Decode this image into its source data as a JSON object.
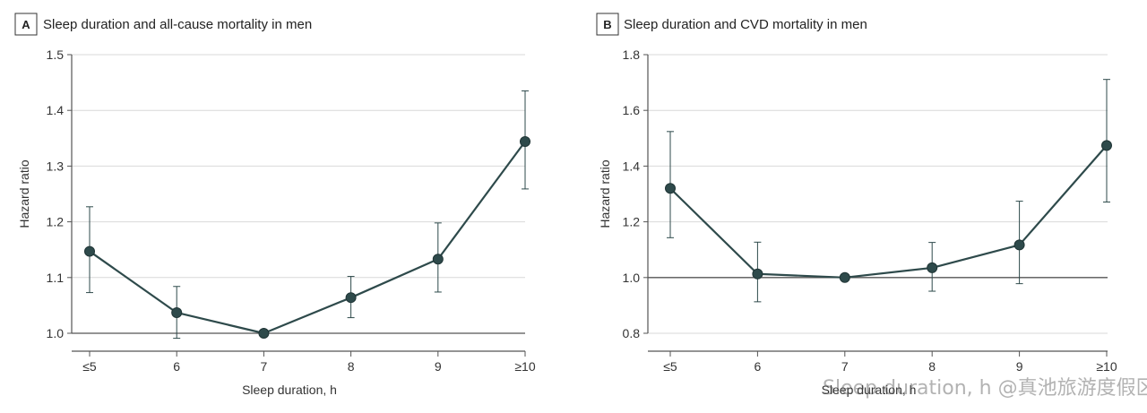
{
  "colors": {
    "line": "#2e4a4b",
    "marker": "#2e4a4b",
    "grid": "#d9d9d9",
    "axis": "#555555",
    "reference_line": "#555555"
  },
  "watermark": "Sleep duration, h @真池旅游度假区",
  "chart_data": [
    {
      "type": "line",
      "panel": "A",
      "title": "Sleep duration and all-cause mortality in men",
      "xlabel": "Sleep duration, h",
      "ylabel": "Hazard ratio",
      "categories": [
        "≤5",
        "6",
        "7",
        "8",
        "9",
        "≥10"
      ],
      "values": [
        1.147,
        1.037,
        1.0,
        1.064,
        1.133,
        1.344
      ],
      "ci_lower": [
        1.073,
        0.991,
        1.0,
        1.028,
        1.074,
        1.259
      ],
      "ci_upper": [
        1.227,
        1.084,
        1.0,
        1.102,
        1.198,
        1.435
      ],
      "ylim": [
        1.0,
        1.5
      ],
      "yticks": [
        1.0,
        1.1,
        1.2,
        1.3,
        1.4,
        1.5
      ],
      "ytick_labels": [
        "1.0",
        "1.1",
        "1.2",
        "1.3",
        "1.4",
        "1.5"
      ],
      "reference": 1.0,
      "grid": true
    },
    {
      "type": "line",
      "panel": "B",
      "title": "Sleep duration and CVD mortality in men",
      "xlabel": "Sleep duration, h",
      "ylabel": "Hazard ratio",
      "categories": [
        "≤5",
        "6",
        "7",
        "8",
        "9",
        "≥10"
      ],
      "values": [
        1.32,
        1.013,
        1.0,
        1.035,
        1.117,
        1.474
      ],
      "ci_lower": [
        1.143,
        0.913,
        1.0,
        0.951,
        0.978,
        1.271
      ],
      "ci_upper": [
        1.524,
        1.127,
        1.0,
        1.126,
        1.274,
        1.711
      ],
      "ylim": [
        0.8,
        1.8
      ],
      "yticks": [
        0.8,
        1.0,
        1.2,
        1.4,
        1.6,
        1.8
      ],
      "ytick_labels": [
        "0.8",
        "1.0",
        "1.2",
        "1.4",
        "1.6",
        "1.8"
      ],
      "reference": 1.0,
      "grid": true
    }
  ]
}
